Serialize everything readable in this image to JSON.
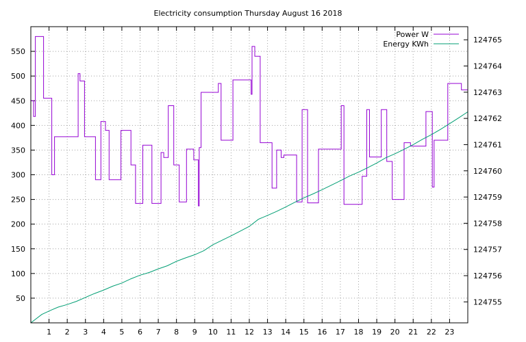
{
  "chart_data": {
    "type": "line",
    "title": "Electricity consumption Thursday August 16 2018",
    "xlabel": "",
    "ylabel": "",
    "y2label": "",
    "xlim": [
      0,
      24
    ],
    "ylim": [
      0,
      600
    ],
    "y2lim": [
      124754.2,
      124765.5
    ],
    "x_ticks": [
      1,
      2,
      3,
      4,
      5,
      6,
      7,
      8,
      9,
      10,
      11,
      12,
      13,
      14,
      15,
      16,
      17,
      18,
      19,
      20,
      21,
      22,
      23
    ],
    "x_tick_labels": [
      "1",
      "2",
      "3",
      "4",
      "5",
      "6",
      "7",
      "8",
      "9",
      "10",
      "11",
      "12",
      "13",
      "14",
      "15",
      "16",
      "17",
      "18",
      "19",
      "20",
      "21",
      "22",
      "23"
    ],
    "y_ticks": [
      50,
      100,
      150,
      200,
      250,
      300,
      350,
      400,
      450,
      500,
      550
    ],
    "y_tick_labels": [
      "50",
      "100",
      "150",
      "200",
      "250",
      "300",
      "350",
      "400",
      "450",
      "500",
      "550"
    ],
    "y2_ticks": [
      124755,
      124756,
      124757,
      124758,
      124759,
      124760,
      124761,
      124762,
      124763,
      124764,
      124765
    ],
    "y2_tick_labels": [
      "124755",
      "124756",
      "124757",
      "124758",
      "124759",
      "124760",
      "124761",
      "124762",
      "124763",
      "124764",
      "124765"
    ],
    "grid": true,
    "legend_position": "top-right",
    "series": [
      {
        "name": "Power W",
        "axis": "left",
        "color": "#9400d3",
        "step": true,
        "x": [
          0,
          0.15,
          0.25,
          0.35,
          0.7,
          1.15,
          1.3,
          1.45,
          2.6,
          2.7,
          2.95,
          3.1,
          3.55,
          3.85,
          4.1,
          4.3,
          4.4,
          4.55,
          4.95,
          5.5,
          5.75,
          6.15,
          6.65,
          7.15,
          7.3,
          7.55,
          7.85,
          8.15,
          8.55,
          8.95,
          9.2,
          9.25,
          9.35,
          10.05,
          10.3,
          10.45,
          11.0,
          11.1,
          12.1,
          12.15,
          12.3,
          12.6,
          12.75,
          13.25,
          13.5,
          13.75,
          13.9,
          14.3,
          14.6,
          14.9,
          15.2,
          15.8,
          16.3,
          16.75,
          17.05,
          17.2,
          17.9,
          18.2,
          18.45,
          18.6,
          19.25,
          19.55,
          19.85,
          20.5,
          20.85,
          21.05,
          21.5,
          21.7,
          22.05,
          22.15,
          22.7,
          22.9,
          23.65
        ],
        "y": [
          450,
          418,
          580,
          580,
          455,
          300,
          377,
          377,
          505,
          490,
          377,
          377,
          290,
          408,
          390,
          290,
          290,
          290,
          390,
          320,
          242,
          360,
          242,
          345,
          335,
          440,
          320,
          245,
          352,
          330,
          237,
          355,
          467,
          467,
          485,
          370,
          370,
          492,
          463,
          560,
          540,
          365,
          365,
          273,
          350,
          335,
          340,
          340,
          245,
          432,
          243,
          352,
          352,
          352,
          440,
          240,
          240,
          297,
          432,
          336,
          432,
          327,
          250,
          365,
          358,
          358,
          358,
          428,
          275,
          370,
          370,
          485,
          472
        ]
      },
      {
        "name": "Energy KWh",
        "axis": "right",
        "color": "#009e73",
        "step": false,
        "x": [
          0,
          0.6,
          1.1,
          1.5,
          2,
          2.5,
          3,
          3.5,
          4,
          4.5,
          5,
          5.5,
          6,
          6.5,
          7,
          7.5,
          8,
          8.5,
          9,
          9.5,
          10,
          10.5,
          11,
          11.5,
          12,
          12.5,
          13,
          13.5,
          14,
          14.5,
          15,
          15.5,
          16,
          16.5,
          17,
          17.5,
          18,
          18.5,
          19,
          19.5,
          20,
          20.5,
          21,
          21.5,
          22,
          22.5,
          23,
          23.5,
          24
        ],
        "y": [
          124754.2,
          124754.52,
          124754.68,
          124754.8,
          124754.9,
          124755.02,
          124755.17,
          124755.32,
          124755.45,
          124755.6,
          124755.72,
          124755.88,
          124756.02,
          124756.12,
          124756.26,
          124756.38,
          124756.55,
          124756.68,
          124756.8,
          124756.95,
          124757.18,
          124757.35,
          124757.52,
          124757.7,
          124757.88,
          124758.15,
          124758.3,
          124758.45,
          124758.62,
          124758.8,
          124758.97,
          124759.12,
          124759.28,
          124759.45,
          124759.62,
          124759.8,
          124759.95,
          124760.12,
          124760.3,
          124760.5,
          124760.65,
          124760.82,
          124761.0,
          124761.2,
          124761.38,
          124761.58,
          124761.8,
          124762.02,
          124762.25
        ]
      }
    ]
  }
}
